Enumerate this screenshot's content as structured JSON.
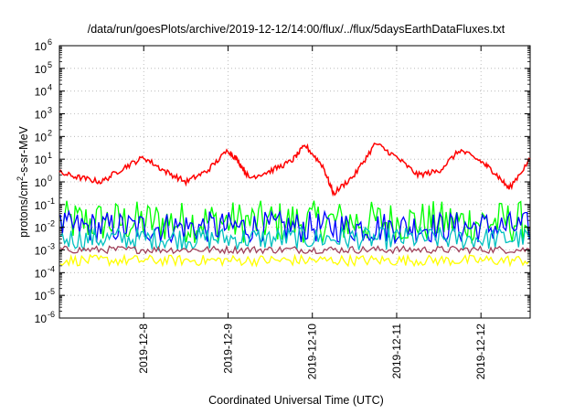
{
  "chart_data": {
    "type": "line",
    "title": "/data/run/goesPlots/archive/2019-12-12/14:00/flux/../flux/5daysEarthDataFluxes.txt",
    "xlabel": "Coordinated Universal Time (UTC)",
    "ylabel_parts": [
      "protons/cm",
      "2",
      "-s-sr-MeV"
    ],
    "x_range": [
      "2019-12-07T00:00",
      "2019-12-12T14:00"
    ],
    "x_ticks": [
      "2019-12-8",
      "2019-12-9",
      "2019-12-10",
      "2019-12-11",
      "2019-12-12"
    ],
    "y_scale": "log",
    "ylim": [
      1e-06,
      1000000.0
    ],
    "y_tick_exponents": [
      -6,
      -5,
      -4,
      -3,
      -2,
      -1,
      0,
      1,
      2,
      3,
      4,
      5,
      6
    ],
    "y_tick_base": "10",
    "grid": true,
    "colors": {
      "red": "#ff0000",
      "green": "#00ff00",
      "blue": "#0000ff",
      "cyan": "#00c0c0",
      "mauve": "#a0405a",
      "yellow": "#ffff00"
    },
    "series": [
      {
        "color": "#ff0000",
        "x": [
          "2019-12-07T00:00",
          "2019-12-07T06:00",
          "2019-12-07T12:00",
          "2019-12-07T18:00",
          "2019-12-08T00:00",
          "2019-12-08T06:00",
          "2019-12-08T12:00",
          "2019-12-08T18:00",
          "2019-12-09T00:00",
          "2019-12-09T03:00",
          "2019-12-09T06:00",
          "2019-12-09T12:00",
          "2019-12-09T18:00",
          "2019-12-09T22:00",
          "2019-12-10T03:00",
          "2019-12-10T06:00",
          "2019-12-10T12:00",
          "2019-12-10T18:00",
          "2019-12-11T00:00",
          "2019-12-11T06:00",
          "2019-12-11T12:00",
          "2019-12-11T18:00",
          "2019-12-12T00:00",
          "2019-12-12T04:00",
          "2019-12-12T08:00",
          "2019-12-12T14:00"
        ],
        "values": [
          2.5,
          1.5,
          1.0,
          4.0,
          12,
          3.0,
          1.0,
          3.0,
          25,
          8,
          1.5,
          3.0,
          8,
          40,
          5,
          0.3,
          2.0,
          50,
          12,
          2.0,
          3.0,
          25,
          8,
          2.5,
          0.5,
          10
        ]
      },
      {
        "color": "#00ff00",
        "band": [
          0.002,
          0.15
        ]
      },
      {
        "color": "#0000ff",
        "band": [
          0.002,
          0.05
        ]
      },
      {
        "color": "#00c0c0",
        "band": [
          0.001,
          0.01
        ]
      },
      {
        "color": "#a0405a",
        "band": [
          0.0007,
          0.0015
        ]
      },
      {
        "color": "#ffff00",
        "band": [
          0.0002,
          0.0006
        ]
      }
    ]
  }
}
